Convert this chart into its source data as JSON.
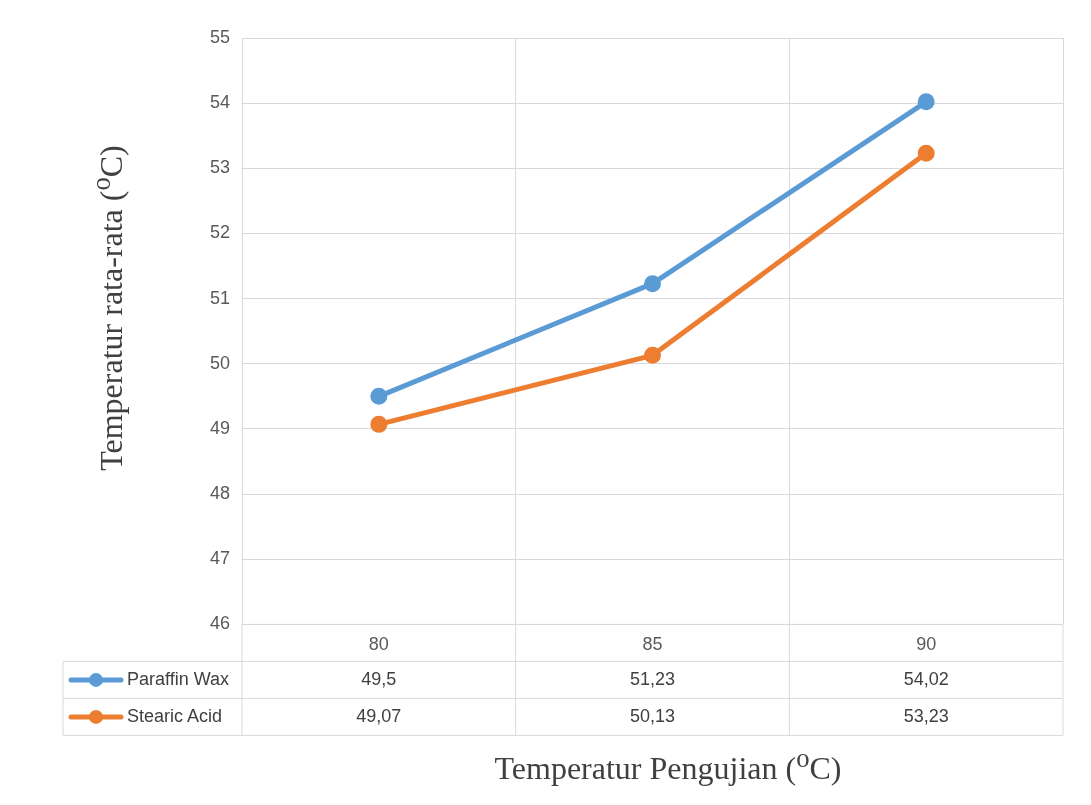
{
  "chart_data": {
    "type": "line",
    "xlabel": "Temperatur Pengujian ($^{o}$C)",
    "ylabel": "Temperatur rata-rata ($^{o}$C)",
    "categories": [
      "80",
      "85",
      "90"
    ],
    "series": [
      {
        "name": "Paraffin Wax",
        "color": "#5b9bd5",
        "values": [
          49.5,
          51.23,
          54.02
        ],
        "value_labels": [
          "49,5",
          "51,23",
          "54,02"
        ]
      },
      {
        "name": "Stearic Acid",
        "color": "#ed7d31",
        "values": [
          49.07,
          50.13,
          53.23
        ],
        "value_labels": [
          "49,07",
          "50,13",
          "53,23"
        ]
      }
    ],
    "ylim": [
      46,
      55
    ],
    "yticks": [
      46,
      47,
      48,
      49,
      50,
      51,
      52,
      53,
      54,
      55
    ],
    "grid": true,
    "legend": "bottom",
    "marker": "circle",
    "line_style": "solid"
  }
}
